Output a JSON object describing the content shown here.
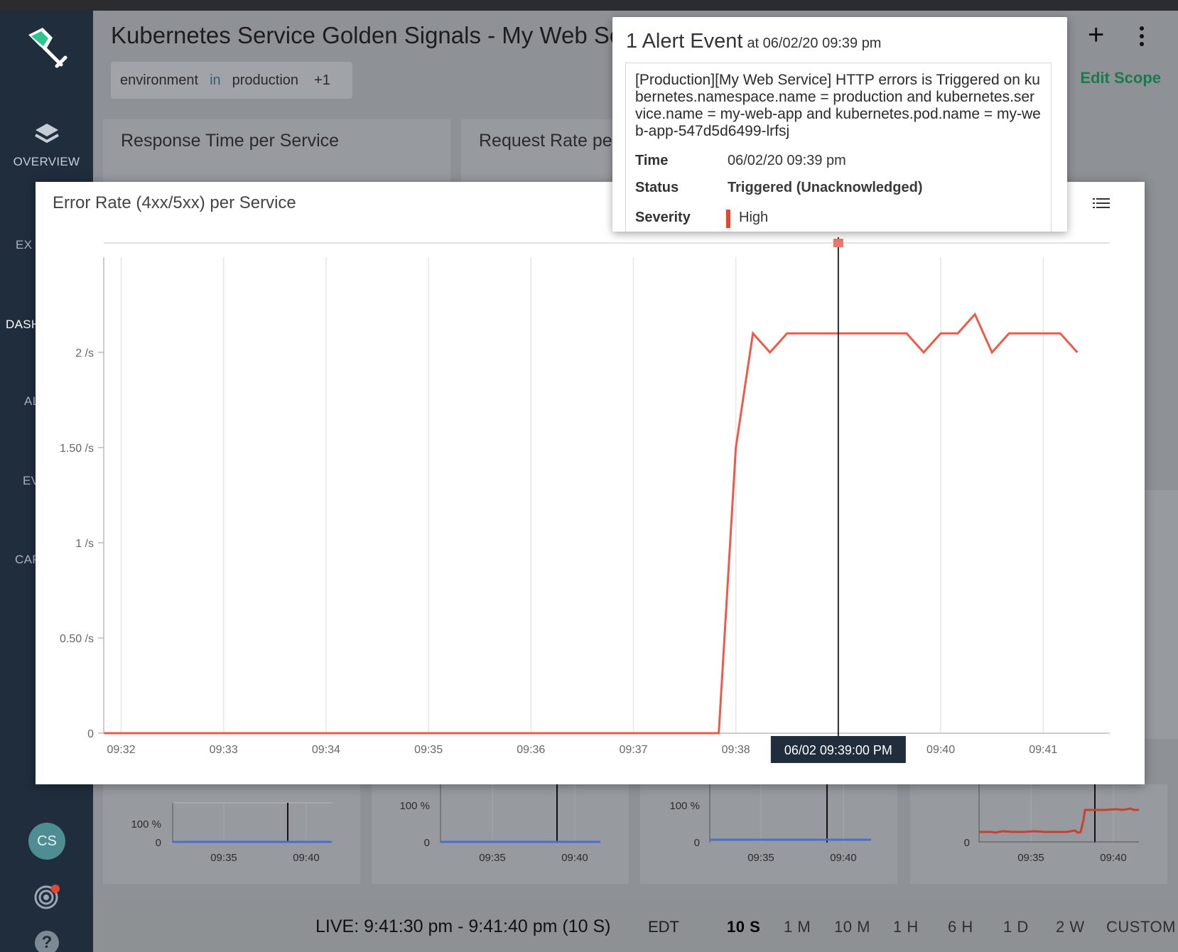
{
  "app": {
    "dashboard_title": "Kubernetes Service Golden Signals - My Web Se",
    "scope": {
      "key": "environment",
      "operator": "in",
      "value": "production",
      "more": "+1"
    },
    "edit_scope": "Edit Scope"
  },
  "sidebar": {
    "overview": "OVERVIEW",
    "partial_labels": [
      "EX",
      "DASH",
      "AL",
      "EV",
      "CAP"
    ],
    "avatar": "CS"
  },
  "panels": {
    "response_time": "Response Time per Service",
    "request_rate": "Request Rate per"
  },
  "mini_charts": [
    {
      "y_top": "100 %",
      "y_zero": "0",
      "x_labels": [
        "09:35",
        "09:40"
      ]
    },
    {
      "y_top": "100 %",
      "y_zero": "0",
      "x_labels": [
        "09:35",
        "09:40"
      ]
    },
    {
      "y_top": "100 %",
      "y_zero": "0",
      "x_labels": [
        "09:35",
        "09:40"
      ]
    },
    {
      "y_top": "",
      "y_zero": "0",
      "x_labels": [
        "09:35",
        "09:40"
      ]
    }
  ],
  "timebar": {
    "live": "LIVE: 9:41:30 pm - 9:41:40 pm (10 S)",
    "timezone": "EDT",
    "ranges": [
      "10 S",
      "1 M",
      "10 M",
      "1 H",
      "6 H",
      "1 D",
      "2 W",
      "CUSTOM"
    ],
    "active_range": "10 S"
  },
  "modal": {
    "title": "Error Rate (4xx/5xx) per Service",
    "cursor_label": "06/02 09:39:00 PM"
  },
  "popover": {
    "count_title": "1 Alert Event",
    "at_time": "at 06/02/20 09:39 pm",
    "message": "[Production][My Web Service] HTTP errors is Triggered on kubernetes.namespace.name = production and kubernetes.service.name = my-web-app and kubernetes.pod.name = my-web-app-547d5d6499-lrfsj",
    "time_label": "Time",
    "time_value": "06/02/20 09:39 pm",
    "status_label": "Status",
    "status_value": "Triggered (Unacknowledged)",
    "severity_label": "Severity",
    "severity_value": "High"
  },
  "colors": {
    "sidebar": "#1f2d3d",
    "accent_green": "#1a7a4e",
    "series_red": "#ec5b49",
    "series_blue": "#4a6fd0",
    "cursor": "#1f2d3d"
  },
  "chart_data": {
    "type": "line",
    "title": "Error Rate (4xx/5xx) per Service",
    "y_unit": "/s",
    "ylim": [
      0,
      2.5
    ],
    "y_ticks": [
      {
        "value": 0,
        "label": "0"
      },
      {
        "value": 0.5,
        "label": "0.50 /s"
      },
      {
        "value": 1,
        "label": "1 /s"
      },
      {
        "value": 1.5,
        "label": "1.50 /s"
      },
      {
        "value": 2,
        "label": "2 /s"
      }
    ],
    "x_ticks": [
      "09:32",
      "09:33",
      "09:34",
      "09:35",
      "09:36",
      "09:37",
      "09:38",
      "09:39",
      "09:40",
      "09:41"
    ],
    "x_range_minutes": [
      -0.17,
      9.65
    ],
    "grid": true,
    "cursor_time": "09:39",
    "alert_time": "09:39",
    "series": [
      {
        "color": "#ec5b49",
        "points": [
          [
            "09:31:50",
            0
          ],
          [
            "09:37:50",
            0
          ],
          [
            "09:38:00",
            1.5
          ],
          [
            "09:38:10",
            2.1
          ],
          [
            "09:38:20",
            2.0
          ],
          [
            "09:38:30",
            2.1
          ],
          [
            "09:38:40",
            2.1
          ],
          [
            "09:38:50",
            2.1
          ],
          [
            "09:39:00",
            2.1
          ],
          [
            "09:39:10",
            2.1
          ],
          [
            "09:39:20",
            2.1
          ],
          [
            "09:39:30",
            2.1
          ],
          [
            "09:39:40",
            2.1
          ],
          [
            "09:39:50",
            2.0
          ],
          [
            "09:40:00",
            2.1
          ],
          [
            "09:40:10",
            2.1
          ],
          [
            "09:40:20",
            2.2
          ],
          [
            "09:40:30",
            2.0
          ],
          [
            "09:40:40",
            2.1
          ],
          [
            "09:40:50",
            2.1
          ],
          [
            "09:41:00",
            2.1
          ],
          [
            "09:41:10",
            2.1
          ],
          [
            "09:41:20",
            2.0
          ]
        ]
      }
    ]
  }
}
